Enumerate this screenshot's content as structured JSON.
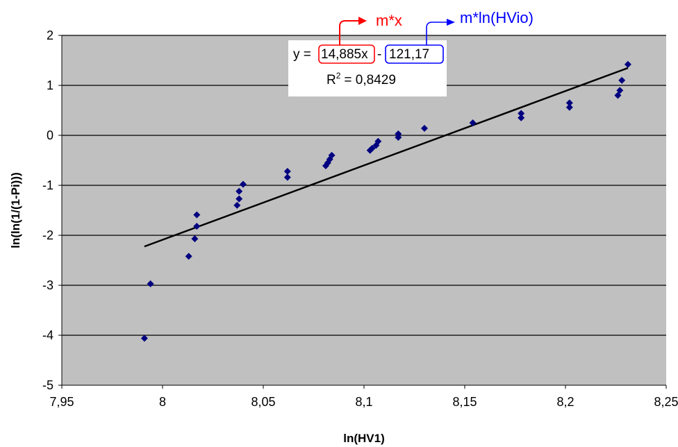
{
  "chart_data": {
    "type": "scatter",
    "xlabel": "ln(HV1)",
    "ylabel": "ln(ln(1/(1-Pi)))",
    "xlim": [
      7.95,
      8.25
    ],
    "ylim": [
      -5,
      2
    ],
    "x_ticks": [
      "7,95",
      "8",
      "8,05",
      "8,1",
      "8,15",
      "8,2",
      "8,25"
    ],
    "y_ticks": [
      "2",
      "1",
      "0",
      "-1",
      "-2",
      "-3",
      "-4",
      "-5"
    ],
    "grid": "horizontal",
    "plot_background": "#c0c0c0",
    "marker_color": "#000080",
    "points": [
      [
        7.991,
        -4.06
      ],
      [
        7.994,
        -2.97
      ],
      [
        8.013,
        -2.42
      ],
      [
        8.016,
        -2.07
      ],
      [
        8.017,
        -1.82
      ],
      [
        8.017,
        -1.59
      ],
      [
        8.037,
        -1.4
      ],
      [
        8.038,
        -1.27
      ],
      [
        8.038,
        -1.12
      ],
      [
        8.04,
        -0.98
      ],
      [
        8.062,
        -0.84
      ],
      [
        8.062,
        -0.72
      ],
      [
        8.081,
        -0.61
      ],
      [
        8.082,
        -0.55
      ],
      [
        8.083,
        -0.48
      ],
      [
        8.084,
        -0.4
      ],
      [
        8.103,
        -0.3
      ],
      [
        8.104,
        -0.26
      ],
      [
        8.106,
        -0.2
      ],
      [
        8.107,
        -0.12
      ],
      [
        8.117,
        -0.04
      ],
      [
        8.117,
        0.03
      ],
      [
        8.13,
        0.14
      ],
      [
        8.154,
        0.25
      ],
      [
        8.178,
        0.35
      ],
      [
        8.178,
        0.44
      ],
      [
        8.202,
        0.56
      ],
      [
        8.202,
        0.65
      ],
      [
        8.226,
        0.8
      ],
      [
        8.227,
        0.9
      ],
      [
        8.228,
        1.1
      ],
      [
        8.231,
        1.42
      ]
    ],
    "trendline": {
      "slope": 14.885,
      "intercept": -121.17,
      "x_range": [
        7.991,
        8.231
      ],
      "color": "#000000"
    },
    "equation": {
      "prefix": "y =",
      "slope_text": "14,885x",
      "minus": "-",
      "intercept_text": "121,17",
      "r2_label": "R",
      "r2_sup": "2",
      "r2_value": "= 0,8429"
    },
    "annotations": [
      {
        "text": "m*x",
        "color": "#ff0000"
      },
      {
        "text": "m*ln(HVio)",
        "color": "#0000ff"
      }
    ]
  }
}
